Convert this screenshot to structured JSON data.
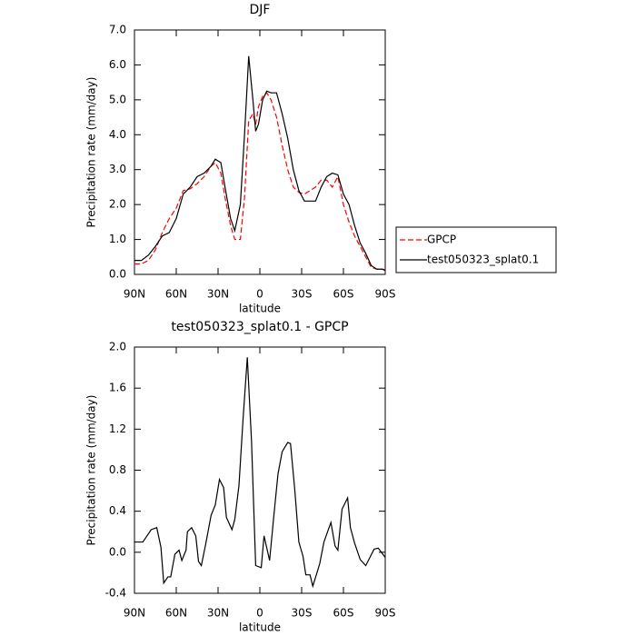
{
  "chart_data": [
    {
      "type": "line",
      "title": "DJF",
      "xlabel": "latitude",
      "ylabel": "Precipitation rate (mm/day)",
      "x": [
        90,
        85,
        80,
        75,
        70,
        65,
        60,
        55,
        50,
        45,
        40,
        35,
        32,
        28,
        25,
        21,
        18,
        14,
        11,
        8,
        5,
        3,
        1,
        -2,
        -5,
        -8,
        -12,
        -16,
        -20,
        -24,
        -28,
        -32,
        -36,
        -40,
        -44,
        -48,
        -52,
        -56,
        -60,
        -64,
        -68,
        -72,
        -76,
        -80,
        -84,
        -88,
        -90
      ],
      "series": [
        {
          "name": "GPCP",
          "color": "#ff0000",
          "dash": true,
          "values": [
            0.3,
            0.3,
            0.4,
            0.7,
            1.2,
            1.6,
            1.9,
            2.4,
            2.45,
            2.6,
            2.8,
            3.1,
            3.2,
            2.9,
            2.2,
            1.4,
            1.0,
            1.0,
            2.2,
            4.4,
            4.6,
            4.3,
            4.8,
            5.1,
            5.2,
            5.0,
            4.5,
            3.7,
            3.0,
            2.5,
            2.35,
            2.3,
            2.4,
            2.5,
            2.7,
            2.7,
            2.5,
            2.8,
            2.0,
            1.5,
            1.1,
            0.8,
            0.5,
            0.2,
            0.15,
            0.15,
            0.1
          ]
        },
        {
          "name": "test050323_splat0.1",
          "color": "#000000",
          "values": [
            0.4,
            0.4,
            0.55,
            0.8,
            1.1,
            1.2,
            1.6,
            2.3,
            2.5,
            2.8,
            2.9,
            3.1,
            3.3,
            3.2,
            2.5,
            1.6,
            1.25,
            2.0,
            4.0,
            6.25,
            5.0,
            4.1,
            4.3,
            5.0,
            5.25,
            5.2,
            5.2,
            4.6,
            3.9,
            3.0,
            2.4,
            2.1,
            2.1,
            2.1,
            2.5,
            2.8,
            2.9,
            2.85,
            2.3,
            2.0,
            1.4,
            0.9,
            0.6,
            0.25,
            0.15,
            0.15,
            0.12
          ]
        }
      ],
      "xlim": [
        90,
        -90
      ],
      "xticks": [
        {
          "value": 90,
          "label": "90N"
        },
        {
          "value": 60,
          "label": "60N"
        },
        {
          "value": 30,
          "label": "30N"
        },
        0,
        {
          "value": -30,
          "label": "30S"
        },
        {
          "value": -60,
          "label": "60S"
        },
        {
          "value": -90,
          "label": "90S"
        }
      ],
      "ylim": [
        0,
        7
      ],
      "yticks": [
        {
          "value": 0,
          "label": "0.0"
        },
        {
          "value": 1,
          "label": "1.0"
        },
        {
          "value": 2,
          "label": "2.0"
        },
        {
          "value": 3,
          "label": "3.0"
        },
        {
          "value": 4,
          "label": "4.0"
        },
        {
          "value": 5,
          "label": "5.0"
        },
        {
          "value": 6,
          "label": "6.0"
        },
        {
          "value": 7,
          "label": "7.0"
        }
      ],
      "legend": "outside right"
    },
    {
      "type": "line",
      "title": "test050323_splat0.1 - GPCP",
      "xlabel": "latitude",
      "ylabel": "Precipitation rate (mm/day)",
      "x": [
        90,
        84,
        78,
        74,
        71,
        69,
        66,
        64,
        61,
        58,
        56,
        53,
        52,
        49,
        46,
        44,
        42,
        39,
        35,
        32,
        29,
        26,
        24,
        20,
        18,
        15,
        12,
        9,
        6,
        3,
        -1,
        -3,
        -7,
        -10,
        -13,
        -16,
        -20,
        -22,
        -25,
        -28,
        -31,
        -33,
        -36,
        -38,
        -41,
        -43,
        -46,
        -51,
        -54,
        -56,
        -59,
        -63,
        -65,
        -68,
        -72,
        -76,
        -79,
        -82,
        -85,
        -90
      ],
      "values": [
        0.1,
        0.1,
        0.22,
        0.24,
        0.05,
        -0.3,
        -0.24,
        -0.24,
        -0.02,
        0.02,
        -0.08,
        0.02,
        0.2,
        0.24,
        0.16,
        -0.09,
        -0.13,
        0.07,
        0.36,
        0.46,
        0.71,
        0.63,
        0.34,
        0.22,
        0.32,
        0.65,
        1.31,
        1.9,
        1.09,
        -0.13,
        -0.15,
        0.16,
        -0.08,
        0.35,
        0.76,
        0.98,
        1.07,
        1.06,
        0.62,
        0.1,
        -0.04,
        -0.22,
        -0.22,
        -0.33,
        -0.2,
        -0.11,
        0.1,
        0.29,
        0.06,
        0.02,
        0.42,
        0.53,
        0.24,
        0.09,
        -0.07,
        -0.13,
        -0.05,
        0.03,
        0.04,
        -0.05
      ],
      "color": "#000000",
      "xlim": [
        90,
        -90
      ],
      "xticks": [
        {
          "value": 90,
          "label": "90N"
        },
        {
          "value": 60,
          "label": "60N"
        },
        {
          "value": 30,
          "label": "30N"
        },
        0,
        {
          "value": -30,
          "label": "30S"
        },
        {
          "value": -60,
          "label": "60S"
        },
        {
          "value": -90,
          "label": "90S"
        }
      ],
      "ylim": [
        -0.4,
        2.0
      ],
      "yticks": [
        {
          "value": -0.4,
          "label": "-0.4"
        },
        {
          "value": 0,
          "label": "0.0"
        },
        {
          "value": 0.4,
          "label": "0.4"
        },
        {
          "value": 0.8,
          "label": "0.8"
        },
        {
          "value": 1.2,
          "label": "1.2"
        },
        {
          "value": 1.6,
          "label": "1.6"
        },
        {
          "value": 2.0,
          "label": "2.0"
        }
      ]
    }
  ]
}
